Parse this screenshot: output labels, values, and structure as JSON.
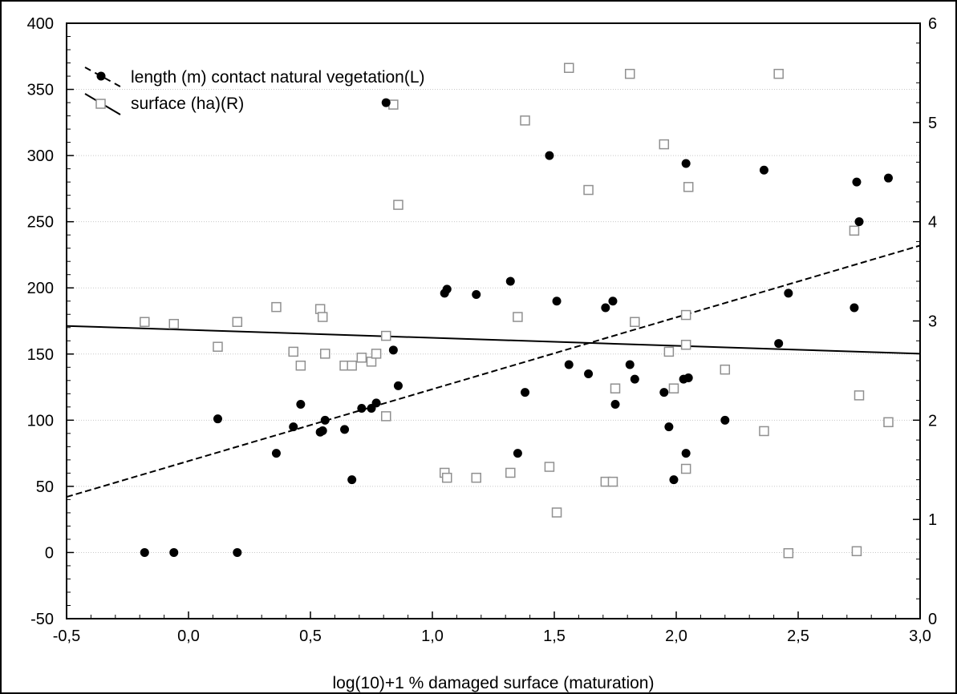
{
  "chart_data": {
    "type": "scatter",
    "xlabel": "log(10)+1 % damaged surface (maturation)",
    "ylabel_left": "",
    "ylabel_right": "",
    "xlim": [
      -0.5,
      3.0
    ],
    "ylim_left": [
      -50,
      400
    ],
    "ylim_right": [
      0,
      6
    ],
    "x_ticks": [
      -0.5,
      0.0,
      0.5,
      1.0,
      1.5,
      2.0,
      2.5,
      3.0
    ],
    "x_tick_labels": [
      "-0,5",
      "0,0",
      "0,5",
      "1,0",
      "1,5",
      "2,0",
      "2,5",
      "3,0"
    ],
    "y_left_ticks": [
      -50,
      0,
      50,
      100,
      150,
      200,
      250,
      300,
      350,
      400
    ],
    "y_left_tick_labels": [
      "-50",
      "0",
      "50",
      "100",
      "150",
      "200",
      "250",
      "300",
      "350",
      "400"
    ],
    "y_right_ticks": [
      0,
      1,
      2,
      3,
      4,
      5,
      6
    ],
    "y_right_tick_labels": [
      "0",
      "1",
      "2",
      "3",
      "4",
      "5",
      "6"
    ],
    "grid": true,
    "legend_position": "top-left",
    "series": [
      {
        "name": "length (m) contact natural vegetation(L)",
        "axis": "left",
        "marker": "filled-circle",
        "color": "#000000",
        "fit": "dashed",
        "fit_line": [
          [
            -0.5,
            42
          ],
          [
            3.0,
            232
          ]
        ],
        "points": [
          [
            -0.18,
            0
          ],
          [
            -0.06,
            0
          ],
          [
            0.2,
            0
          ],
          [
            0.12,
            101
          ],
          [
            0.36,
            75
          ],
          [
            0.43,
            95
          ],
          [
            0.46,
            112
          ],
          [
            0.54,
            91
          ],
          [
            0.55,
            92
          ],
          [
            0.56,
            100
          ],
          [
            0.64,
            93
          ],
          [
            0.67,
            55
          ],
          [
            0.71,
            109
          ],
          [
            0.75,
            109
          ],
          [
            0.77,
            113
          ],
          [
            0.81,
            340
          ],
          [
            0.84,
            153
          ],
          [
            0.86,
            126
          ],
          [
            1.05,
            196
          ],
          [
            1.06,
            199
          ],
          [
            1.18,
            195
          ],
          [
            1.32,
            205
          ],
          [
            1.35,
            75
          ],
          [
            1.38,
            121
          ],
          [
            1.48,
            300
          ],
          [
            1.51,
            190
          ],
          [
            1.56,
            142
          ],
          [
            1.64,
            135
          ],
          [
            1.71,
            185
          ],
          [
            1.74,
            190
          ],
          [
            1.75,
            112
          ],
          [
            1.81,
            142
          ],
          [
            1.83,
            131
          ],
          [
            1.95,
            121
          ],
          [
            1.97,
            95
          ],
          [
            1.99,
            55
          ],
          [
            2.04,
            294
          ],
          [
            2.03,
            131
          ],
          [
            2.05,
            132
          ],
          [
            2.04,
            75
          ],
          [
            2.2,
            100
          ],
          [
            2.36,
            289
          ],
          [
            2.42,
            158
          ],
          [
            2.46,
            196
          ],
          [
            2.73,
            185
          ],
          [
            2.74,
            280
          ],
          [
            2.75,
            250
          ],
          [
            2.87,
            283
          ]
        ]
      },
      {
        "name": "surface (ha)(R)",
        "axis": "right",
        "marker": "open-square",
        "color": "#909090",
        "fit": "solid",
        "fit_line": [
          [
            -0.5,
            2.95
          ],
          [
            3.0,
            2.67
          ]
        ],
        "points": [
          [
            -0.18,
            2.99
          ],
          [
            -0.06,
            2.97
          ],
          [
            0.2,
            2.99
          ],
          [
            0.12,
            2.74
          ],
          [
            0.36,
            3.14
          ],
          [
            0.43,
            2.69
          ],
          [
            0.46,
            2.55
          ],
          [
            0.54,
            3.12
          ],
          [
            0.55,
            3.04
          ],
          [
            0.56,
            2.67
          ],
          [
            0.64,
            2.55
          ],
          [
            0.67,
            2.55
          ],
          [
            0.71,
            2.63
          ],
          [
            0.75,
            2.59
          ],
          [
            0.77,
            2.67
          ],
          [
            0.81,
            2.85
          ],
          [
            0.81,
            2.04
          ],
          [
            0.84,
            5.18
          ],
          [
            0.86,
            4.17
          ],
          [
            1.05,
            1.47
          ],
          [
            1.06,
            1.42
          ],
          [
            1.18,
            1.42
          ],
          [
            1.32,
            1.47
          ],
          [
            1.38,
            5.02
          ],
          [
            1.48,
            1.53
          ],
          [
            1.51,
            1.07
          ],
          [
            1.56,
            5.55
          ],
          [
            1.64,
            4.32
          ],
          [
            1.71,
            1.38
          ],
          [
            1.74,
            1.38
          ],
          [
            1.75,
            2.32
          ],
          [
            1.81,
            5.49
          ],
          [
            1.83,
            2.99
          ],
          [
            1.95,
            4.78
          ],
          [
            1.97,
            2.69
          ],
          [
            1.99,
            2.32
          ],
          [
            2.04,
            3.06
          ],
          [
            2.04,
            2.76
          ],
          [
            2.05,
            4.35
          ],
          [
            2.04,
            1.51
          ],
          [
            2.2,
            2.51
          ],
          [
            2.36,
            1.89
          ],
          [
            2.42,
            5.49
          ],
          [
            2.46,
            0.66
          ],
          [
            2.73,
            3.91
          ],
          [
            2.74,
            0.68
          ],
          [
            2.75,
            2.25
          ],
          [
            2.87,
            1.98
          ],
          [
            1.35,
            3.04
          ]
        ]
      }
    ]
  }
}
